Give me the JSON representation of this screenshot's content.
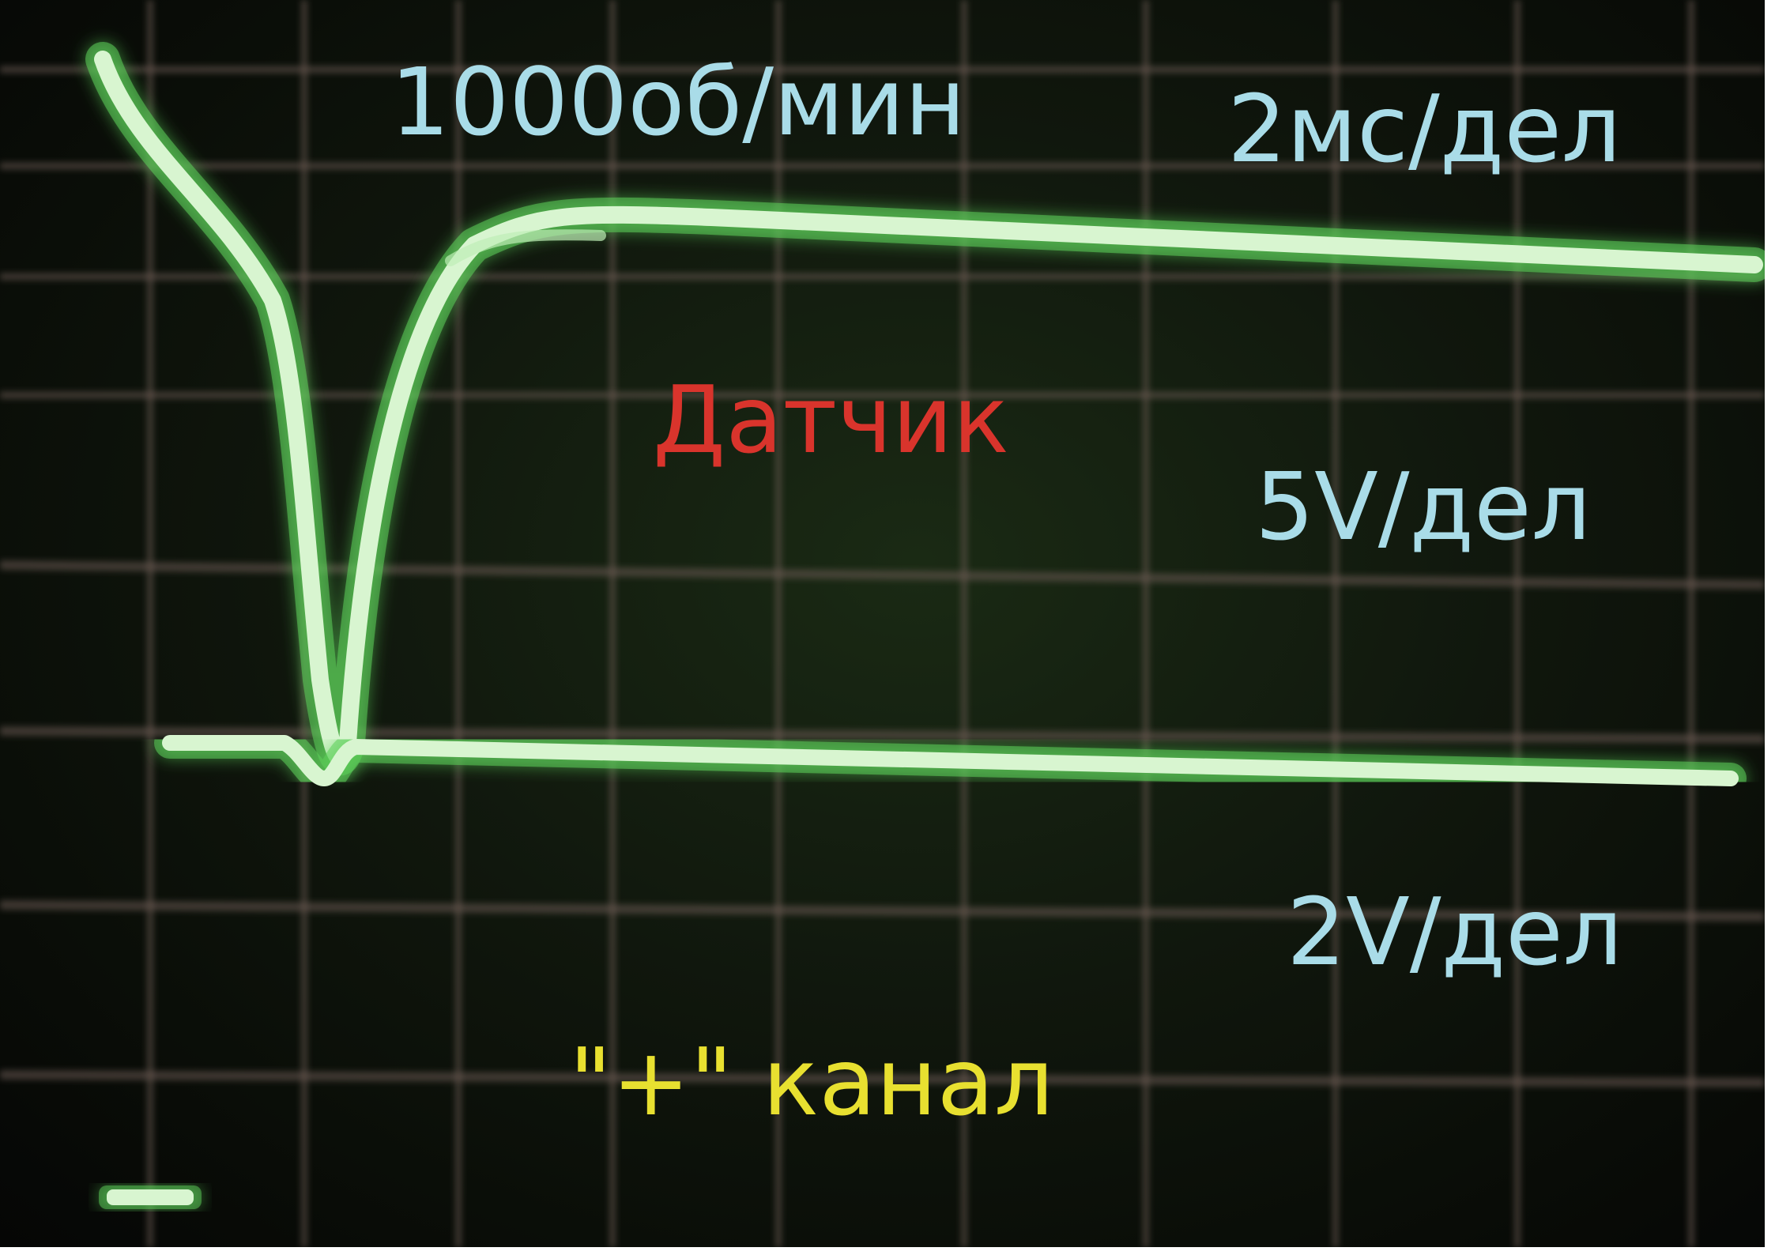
{
  "labels": {
    "rpm": "1000об/мин",
    "time_scale": "2мс/дел",
    "sensor": "Датчик",
    "channel1_scale": "5V/дел",
    "channel2_scale": "2V/дел",
    "channel_name": "\"+\" канал"
  },
  "colors": {
    "info_text": "#a9dce8",
    "sensor_text": "#d9342c",
    "channel_text": "#e8e030",
    "trace": "#d8f5d0",
    "trace_glow": "#5ccf5a",
    "grid": "#6a5a52"
  }
}
